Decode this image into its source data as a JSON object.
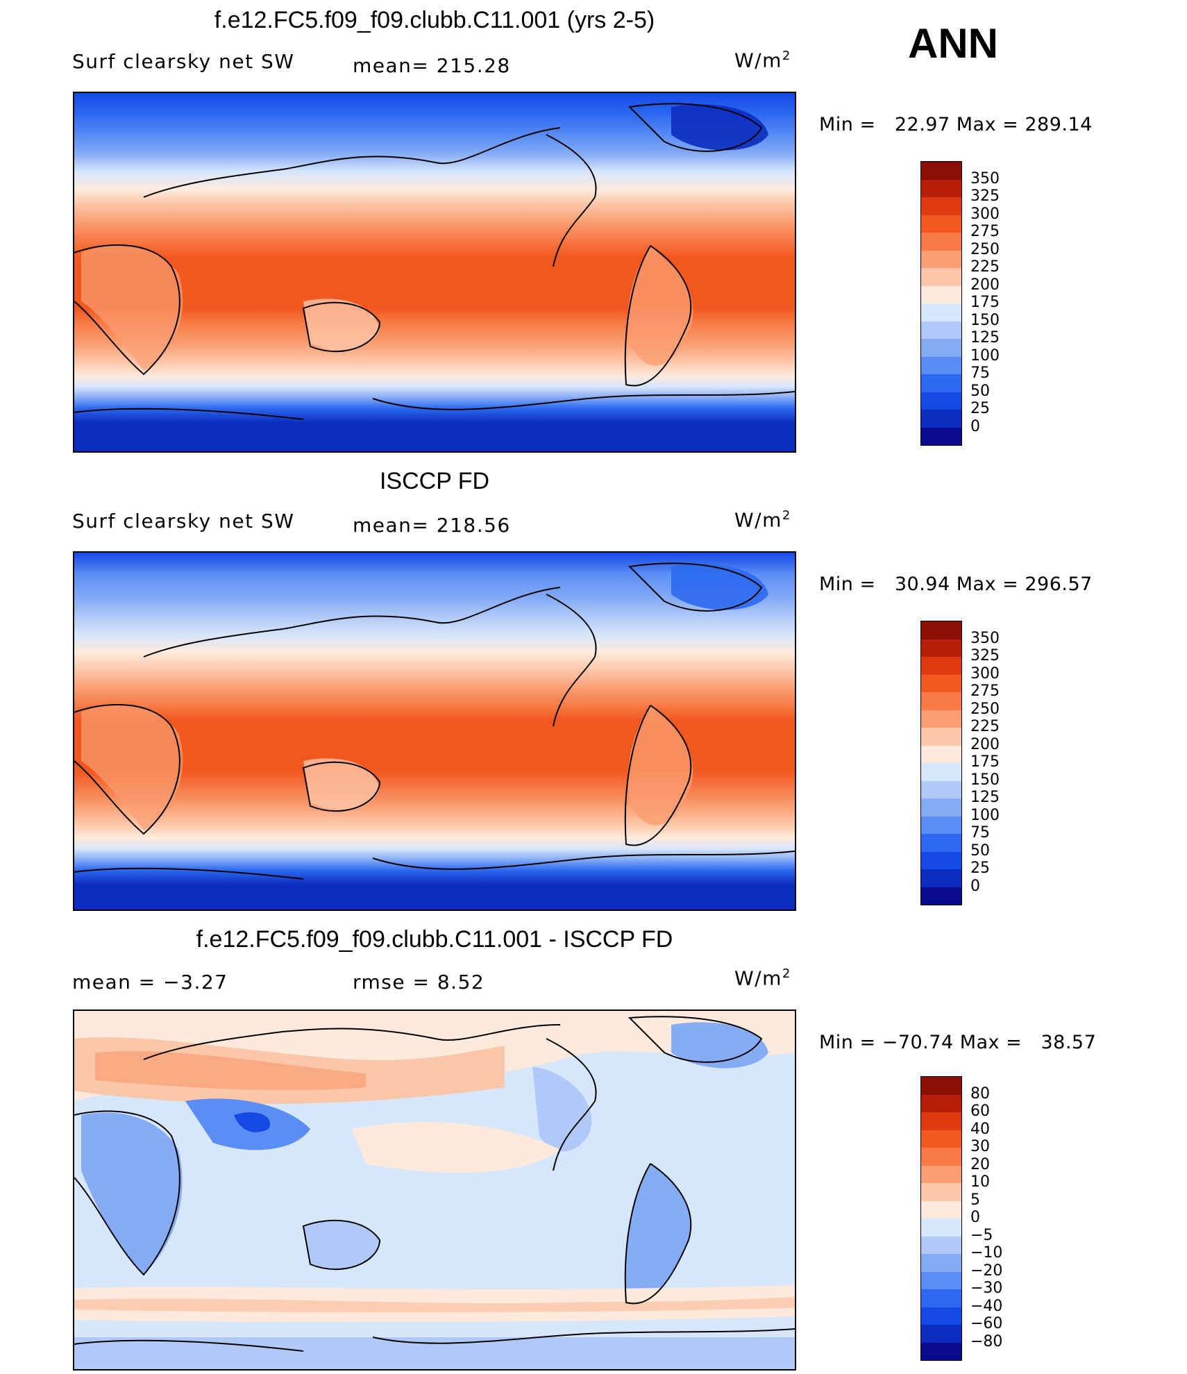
{
  "season": "ANN",
  "colors": {
    "abs_scale": [
      "#0a0a8c",
      "#0b2dbf",
      "#1449e6",
      "#2c69f0",
      "#5a8df5",
      "#86acf6",
      "#b0c9f8",
      "#d6e6fb",
      "#fdeadc",
      "#fcc6a8",
      "#fa9e72",
      "#f77a45",
      "#f2571f",
      "#e03a0f",
      "#b81f0a",
      "#8a0d06"
    ],
    "diff_scale": [
      "#0a0a8c",
      "#0b2dbf",
      "#1449e6",
      "#2c69f0",
      "#5a8df5",
      "#86acf6",
      "#b0c9f8",
      "#d6e6fb",
      "#fdeadc",
      "#fcc6a8",
      "#fa9e72",
      "#f77a45",
      "#f2571f",
      "#e03a0f",
      "#b81f0a",
      "#8a0d06"
    ],
    "land_outline": "#000000"
  },
  "panels": [
    {
      "title": "f.e12.FC5.f09_f09.clubb.C11.001 (yrs 2-5)",
      "left_label": "Surf clearsky net SW",
      "center_label": "mean= 215.28",
      "units_base": "W/m",
      "units_sup": "2",
      "min_max": "Min =   22.97 Max = 289.14",
      "colorbar_labels": [
        "350",
        "325",
        "300",
        "275",
        "250",
        "225",
        "200",
        "175",
        "150",
        "125",
        "100",
        "75",
        "50",
        "25",
        "0"
      ],
      "kind": "abs",
      "field_range": [
        22.97,
        289.14
      ]
    },
    {
      "title": "ISCCP FD",
      "left_label": "Surf clearsky net SW",
      "center_label": "mean= 218.56",
      "units_base": "W/m",
      "units_sup": "2",
      "min_max": "Min =   30.94 Max = 296.57",
      "colorbar_labels": [
        "350",
        "325",
        "300",
        "275",
        "250",
        "225",
        "200",
        "175",
        "150",
        "125",
        "100",
        "75",
        "50",
        "25",
        "0"
      ],
      "kind": "abs",
      "field_range": [
        30.94,
        296.57
      ]
    },
    {
      "title": "f.e12.FC5.f09_f09.clubb.C11.001 - ISCCP FD",
      "left_label": "mean =   −3.27",
      "center_label": "rmse =    8.52",
      "units_base": "W/m",
      "units_sup": "2",
      "min_max": "Min = −70.74 Max =   38.57",
      "colorbar_labels": [
        "80",
        "60",
        "40",
        "30",
        "20",
        "10",
        "5",
        "0",
        "−5",
        "−10",
        "−20",
        "−30",
        "−40",
        "−60",
        "−80"
      ],
      "kind": "diff",
      "field_range": [
        -70.74,
        38.57
      ]
    }
  ]
}
